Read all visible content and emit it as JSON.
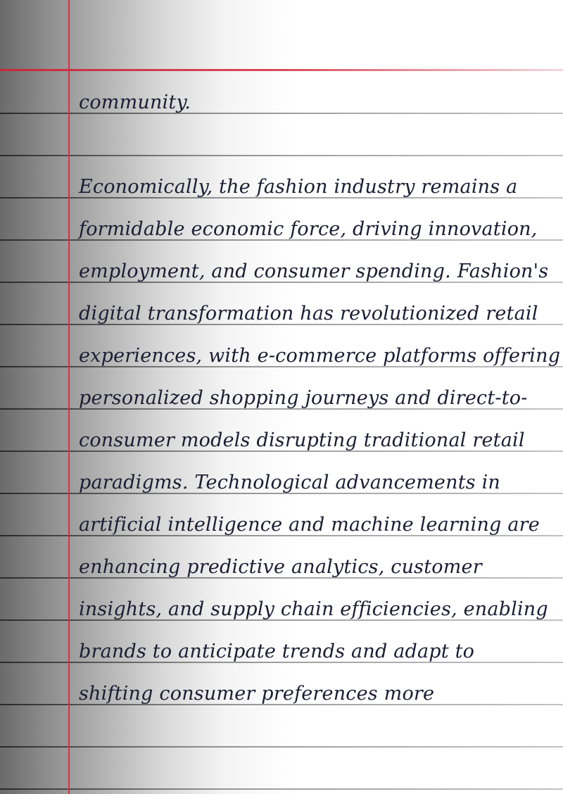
{
  "document": {
    "lines": [
      "community.",
      "",
      "Economically, the fashion industry remains a",
      "formidable economic force, driving innovation,",
      "employment, and consumer spending. Fashion's",
      "digital transformation has revolutionized retail",
      "experiences, with e-commerce platforms offering",
      "personalized shopping journeys and direct-to-",
      "consumer models disrupting traditional retail",
      "paradigms. Technological advancements in",
      "artificial intelligence and machine learning are",
      "enhancing predictive analytics, customer",
      "insights, and supply chain efficiencies, enabling",
      "brands to anticipate trends and adapt to",
      "shifting consumer preferences more"
    ]
  },
  "colors": {
    "ink": "#1b1d33",
    "margin_line": "#d23246"
  }
}
